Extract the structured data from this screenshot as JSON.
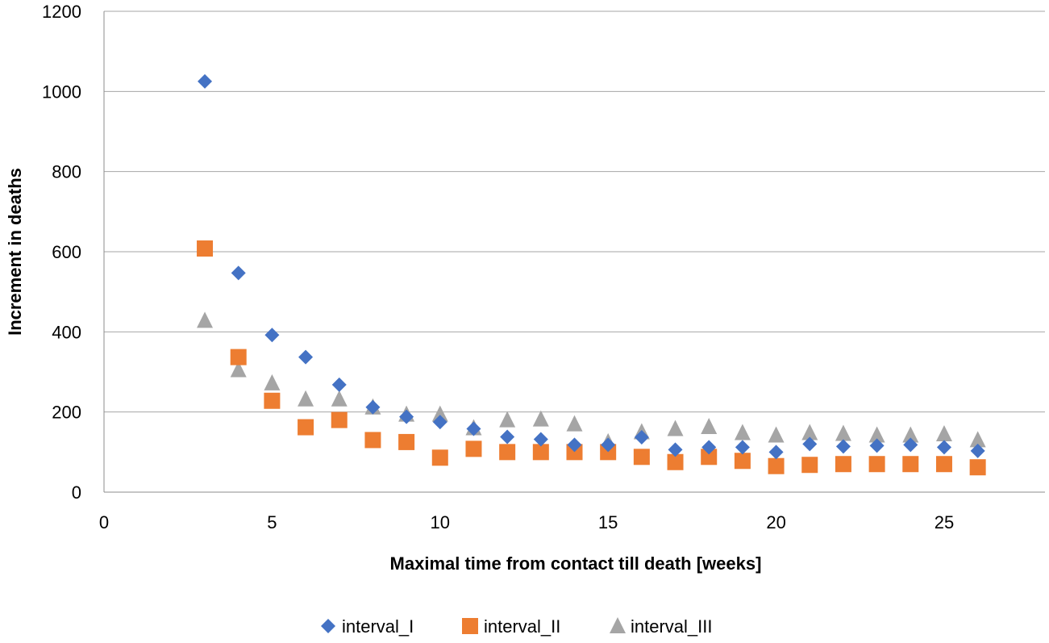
{
  "chart_data": {
    "type": "scatter",
    "title": "",
    "xlabel": "Maximal time from contact till death [weeks]",
    "ylabel": "Increment in deaths",
    "xlim": [
      0,
      28
    ],
    "ylim": [
      0,
      1200
    ],
    "xticks": [
      0,
      5,
      10,
      15,
      20,
      25
    ],
    "yticks": [
      0,
      200,
      400,
      600,
      800,
      1000,
      1200
    ],
    "grid": "horizontal",
    "legend_position": "bottom",
    "series": [
      {
        "name": "interval_I",
        "marker": "diamond",
        "color": "#4472C4",
        "x": [
          3,
          4,
          5,
          6,
          7,
          8,
          9,
          10,
          11,
          12,
          13,
          14,
          15,
          16,
          17,
          18,
          19,
          20,
          21,
          22,
          23,
          24,
          25,
          26
        ],
        "y": [
          1025,
          547,
          392,
          337,
          268,
          212,
          188,
          175,
          158,
          138,
          132,
          118,
          118,
          137,
          106,
          112,
          112,
          100,
          120,
          114,
          116,
          118,
          112,
          103
        ]
      },
      {
        "name": "interval_II",
        "marker": "square",
        "color": "#ED7D31",
        "x": [
          3,
          4,
          5,
          6,
          7,
          8,
          9,
          10,
          11,
          12,
          13,
          14,
          15,
          16,
          17,
          18,
          19,
          20,
          21,
          22,
          23,
          24,
          25,
          26
        ],
        "y": [
          608,
          337,
          228,
          162,
          180,
          130,
          125,
          86,
          108,
          100,
          100,
          100,
          100,
          88,
          75,
          88,
          78,
          65,
          68,
          70,
          70,
          70,
          70,
          62
        ]
      },
      {
        "name": "interval_III",
        "marker": "triangle",
        "color": "#A5A5A5",
        "x": [
          3,
          4,
          5,
          6,
          7,
          8,
          9,
          10,
          11,
          12,
          13,
          14,
          15,
          16,
          17,
          18,
          19,
          20,
          21,
          22,
          23,
          24,
          25,
          26
        ],
        "y": [
          428,
          305,
          272,
          232,
          232,
          212,
          194,
          194,
          160,
          180,
          182,
          170,
          125,
          150,
          158,
          163,
          148,
          142,
          148,
          146,
          142,
          142,
          145,
          130
        ]
      }
    ]
  }
}
